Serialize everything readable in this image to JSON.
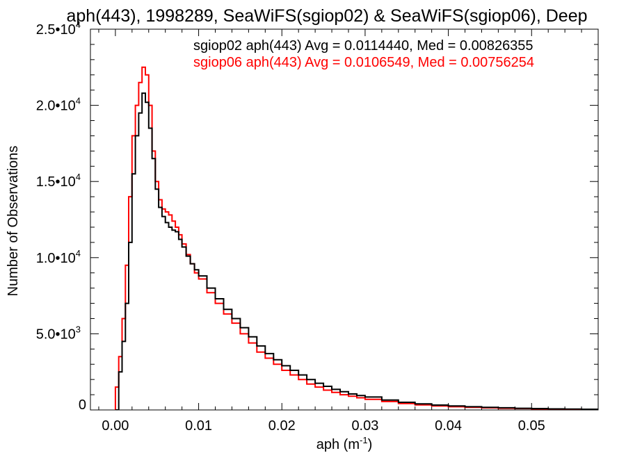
{
  "chart_data": {
    "type": "line",
    "title": "aph(443), 1998289, SeaWiFS(sgiop02) & SeaWiFS(sgiop06), Deep",
    "xlabel": "aph (m",
    "xlabel_superscript": "-1",
    "xlabel_suffix": ")",
    "ylabel": "Number of Observations",
    "xlim": [
      -0.003,
      0.058
    ],
    "ylim": [
      0,
      25000
    ],
    "x_ticks": [
      {
        "value": 0.0,
        "label": "0.00"
      },
      {
        "value": 0.01,
        "label": "0.01"
      },
      {
        "value": 0.02,
        "label": "0.02"
      },
      {
        "value": 0.03,
        "label": "0.03"
      },
      {
        "value": 0.04,
        "label": "0.04"
      },
      {
        "value": 0.05,
        "label": "0.05"
      }
    ],
    "y_ticks": [
      {
        "value": 0,
        "mantissa": "0",
        "exponent": ""
      },
      {
        "value": 5000,
        "mantissa": "5.0•10",
        "exponent": "3"
      },
      {
        "value": 10000,
        "mantissa": "1.0•10",
        "exponent": "4"
      },
      {
        "value": 15000,
        "mantissa": "1.5•10",
        "exponent": "4"
      },
      {
        "value": 20000,
        "mantissa": "2.0•10",
        "exponent": "4"
      },
      {
        "value": 25000,
        "mantissa": "2.5•10",
        "exponent": "4"
      }
    ],
    "legend_placement": "top-right",
    "series": [
      {
        "label": "sgiop02 aph(443) Avg = 0.0114440, Med = 0.00826355",
        "color": "#000000",
        "x": [
          0.0,
          0.0004,
          0.0008,
          0.0012,
          0.0016,
          0.002,
          0.0024,
          0.0028,
          0.0032,
          0.0036,
          0.004,
          0.0044,
          0.0048,
          0.0052,
          0.0056,
          0.006,
          0.0064,
          0.0068,
          0.0072,
          0.0076,
          0.008,
          0.0085,
          0.009,
          0.0095,
          0.01,
          0.011,
          0.012,
          0.013,
          0.014,
          0.015,
          0.016,
          0.017,
          0.018,
          0.019,
          0.02,
          0.021,
          0.022,
          0.023,
          0.024,
          0.025,
          0.026,
          0.027,
          0.028,
          0.029,
          0.03,
          0.032,
          0.034,
          0.036,
          0.038,
          0.04,
          0.042,
          0.044,
          0.046,
          0.048,
          0.05,
          0.052,
          0.054,
          0.056,
          0.058
        ],
        "y": [
          0,
          2500,
          4500,
          7000,
          11000,
          15500,
          18000,
          19500,
          20800,
          20200,
          18500,
          16500,
          14500,
          13300,
          12700,
          12300,
          12000,
          11800,
          11700,
          11200,
          10700,
          10100,
          9600,
          9200,
          8800,
          8000,
          7300,
          6600,
          6000,
          5400,
          4800,
          4200,
          3700,
          3300,
          2900,
          2600,
          2300,
          2000,
          1750,
          1550,
          1350,
          1200,
          1050,
          950,
          850,
          650,
          500,
          400,
          320,
          260,
          210,
          170,
          140,
          110,
          90,
          70,
          55,
          45,
          35
        ]
      },
      {
        "label": "sgiop06 aph(443) Avg = 0.0106549, Med = 0.00756254",
        "color": "#ff0000",
        "x": [
          0.0,
          0.0004,
          0.0008,
          0.0012,
          0.0016,
          0.002,
          0.0024,
          0.0028,
          0.0032,
          0.0036,
          0.004,
          0.0044,
          0.0048,
          0.0052,
          0.0056,
          0.006,
          0.0064,
          0.0068,
          0.0072,
          0.0076,
          0.008,
          0.0085,
          0.009,
          0.0095,
          0.01,
          0.011,
          0.012,
          0.013,
          0.014,
          0.015,
          0.016,
          0.017,
          0.018,
          0.019,
          0.02,
          0.021,
          0.022,
          0.023,
          0.024,
          0.025,
          0.026,
          0.027,
          0.028,
          0.029,
          0.03,
          0.032,
          0.034,
          0.036,
          0.038,
          0.04,
          0.042,
          0.044,
          0.046,
          0.048,
          0.05,
          0.052,
          0.054,
          0.056,
          0.058
        ],
        "y": [
          1500,
          3500,
          6000,
          9500,
          14000,
          18000,
          20000,
          21500,
          22500,
          22000,
          20000,
          17000,
          15000,
          13800,
          13200,
          13000,
          12800,
          12400,
          12000,
          11500,
          10900,
          10200,
          9600,
          9000,
          8600,
          7700,
          7000,
          6300,
          5700,
          5000,
          4400,
          3800,
          3400,
          3000,
          2600,
          2300,
          2000,
          1700,
          1500,
          1300,
          1150,
          1000,
          900,
          800,
          700,
          550,
          420,
          330,
          260,
          210,
          170,
          135,
          110,
          90,
          70,
          55,
          45,
          35,
          28
        ]
      }
    ]
  }
}
